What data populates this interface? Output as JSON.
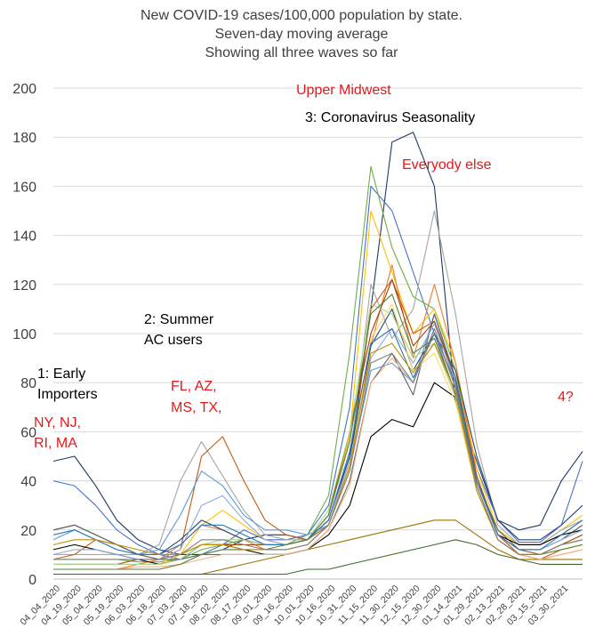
{
  "chart_data": {
    "type": "line",
    "title_lines": [
      "New COVID-19 cases/100,000 population by state.",
      "Seven-day moving average",
      "Showing all three waves so far"
    ],
    "xlabel": "",
    "ylabel": "",
    "ylim": [
      0,
      200
    ],
    "yticks": [
      "0",
      "20",
      "40",
      "60",
      "80",
      "100",
      "120",
      "140",
      "160",
      "180",
      "200"
    ],
    "xticks": [
      "04_04_2020",
      "04_19_2020",
      "05_04_2020",
      "05_19_2020",
      "06_03_2020",
      "06_18_2020",
      "07_03_2020",
      "07_18_2020",
      "08_02_2020",
      "08_17_2020",
      "09_01_2020",
      "09_16_2020",
      "10_01_2020",
      "10_16_2020",
      "10_31_2020",
      "11_15_2020",
      "11_30_2020",
      "12_15_2020",
      "12_30_2020",
      "01_14_2021",
      "01_29_2021",
      "02_13_2021",
      "02_28_2021",
      "03_15_2021",
      "03_30_2021"
    ],
    "grid": true,
    "legend": "none",
    "annotations": {
      "upper_midwest": "Upper Midwest",
      "seasonality": "3: Coronavirus Seasonality",
      "everyone_else": "Everyody else",
      "summer_1": "2: Summer",
      "summer_2": "AC users",
      "early_1": "1: Early",
      "early_2": "Importers",
      "fl_1": "FL, AZ,",
      "fl_2": "MS, TX,",
      "ny_1": "NY, NJ,",
      "ny_2": "RI, MA",
      "four": "4?"
    },
    "series": [
      {
        "color": "#1f3864",
        "values": [
          48,
          50,
          38,
          24,
          16,
          12,
          10,
          10,
          12,
          16,
          18,
          18,
          16,
          24,
          50,
          110,
          178,
          182,
          160,
          72,
          48,
          24,
          20,
          22,
          40,
          52
        ]
      },
      {
        "color": "#4472c4",
        "values": [
          40,
          38,
          30,
          20,
          14,
          10,
          8,
          10,
          14,
          20,
          16,
          16,
          18,
          30,
          70,
          160,
          150,
          125,
          100,
          75,
          45,
          24,
          15,
          15,
          22,
          48
        ]
      },
      {
        "color": "#70ad47",
        "values": [
          8,
          8,
          8,
          8,
          7,
          7,
          8,
          12,
          14,
          16,
          14,
          14,
          18,
          34,
          92,
          168,
          135,
          115,
          110,
          85,
          40,
          20,
          14,
          14,
          18,
          24
        ]
      },
      {
        "color": "#ffc000",
        "values": [
          6,
          6,
          6,
          6,
          6,
          6,
          10,
          22,
          28,
          22,
          16,
          14,
          16,
          26,
          58,
          150,
          125,
          100,
          110,
          88,
          45,
          20,
          14,
          14,
          20,
          26
        ]
      },
      {
        "color": "#a5a5a5",
        "values": [
          10,
          10,
          10,
          10,
          10,
          14,
          40,
          56,
          42,
          28,
          18,
          16,
          16,
          22,
          48,
          120,
          98,
          110,
          150,
          108,
          55,
          22,
          14,
          14,
          20,
          24
        ]
      },
      {
        "color": "#ed7d31",
        "values": [
          4,
          4,
          4,
          4,
          6,
          8,
          14,
          22,
          20,
          16,
          12,
          12,
          14,
          22,
          45,
          95,
          128,
          90,
          120,
          88,
          42,
          18,
          10,
          8,
          10,
          12
        ]
      },
      {
        "color": "#c55a11",
        "values": [
          8,
          10,
          16,
          14,
          10,
          8,
          12,
          50,
          58,
          40,
          24,
          18,
          16,
          22,
          45,
          110,
          122,
          100,
          105,
          80,
          40,
          18,
          10,
          8,
          12,
          14
        ]
      },
      {
        "color": "#5b9bd5",
        "values": [
          16,
          20,
          16,
          12,
          10,
          12,
          26,
          44,
          38,
          26,
          20,
          20,
          18,
          22,
          45,
          85,
          88,
          80,
          108,
          80,
          40,
          18,
          12,
          12,
          16,
          22
        ]
      },
      {
        "color": "#264478",
        "values": [
          20,
          22,
          18,
          14,
          10,
          10,
          16,
          24,
          20,
          16,
          14,
          14,
          16,
          24,
          50,
          95,
          110,
          85,
          100,
          85,
          50,
          24,
          16,
          16,
          22,
          30
        ]
      },
      {
        "color": "#9e480e",
        "values": [
          6,
          6,
          6,
          6,
          8,
          8,
          10,
          14,
          14,
          14,
          14,
          14,
          16,
          26,
          60,
          100,
          122,
          95,
          105,
          82,
          42,
          18,
          12,
          10,
          14,
          18
        ]
      },
      {
        "color": "#636363",
        "values": [
          20,
          22,
          18,
          14,
          10,
          8,
          8,
          10,
          10,
          10,
          10,
          10,
          12,
          20,
          40,
          80,
          92,
          75,
          108,
          82,
          40,
          20,
          12,
          12,
          16,
          22
        ]
      },
      {
        "color": "#997300",
        "values": [
          2,
          2,
          2,
          2,
          2,
          2,
          2,
          2,
          4,
          6,
          8,
          10,
          12,
          14,
          16,
          18,
          20,
          22,
          24,
          24,
          18,
          12,
          8,
          8,
          8,
          8
        ]
      },
      {
        "color": "#43682b",
        "values": [
          2,
          2,
          2,
          2,
          2,
          2,
          2,
          2,
          2,
          2,
          2,
          2,
          4,
          4,
          6,
          8,
          10,
          12,
          14,
          16,
          14,
          10,
          8,
          6,
          6,
          6
        ]
      },
      {
        "color": "#000000",
        "values": [
          12,
          14,
          12,
          10,
          8,
          6,
          8,
          14,
          14,
          12,
          10,
          10,
          12,
          18,
          30,
          58,
          65,
          62,
          80,
          74,
          40,
          18,
          14,
          14,
          18,
          20
        ]
      },
      {
        "color": "#f4b183",
        "values": [
          4,
          4,
          4,
          4,
          5,
          5,
          6,
          8,
          10,
          10,
          10,
          10,
          12,
          20,
          38,
          80,
          90,
          80,
          100,
          78,
          38,
          16,
          10,
          8,
          10,
          12
        ]
      },
      {
        "color": "#8faadc",
        "values": [
          10,
          12,
          12,
          10,
          8,
          8,
          12,
          30,
          34,
          24,
          16,
          14,
          16,
          24,
          48,
          90,
          102,
          88,
          104,
          80,
          40,
          18,
          12,
          12,
          16,
          20
        ]
      },
      {
        "color": "#a9d18e",
        "values": [
          6,
          6,
          6,
          6,
          6,
          6,
          8,
          14,
          16,
          16,
          14,
          14,
          16,
          28,
          60,
          112,
          108,
          90,
          96,
          74,
          36,
          16,
          10,
          10,
          14,
          16
        ]
      },
      {
        "color": "#ffd966",
        "values": [
          4,
          4,
          4,
          4,
          4,
          4,
          6,
          10,
          12,
          12,
          12,
          12,
          14,
          22,
          45,
          98,
          112,
          85,
          92,
          72,
          36,
          16,
          10,
          10,
          12,
          14
        ]
      },
      {
        "color": "#2e75b6",
        "values": [
          18,
          20,
          16,
          12,
          10,
          10,
          14,
          22,
          22,
          18,
          14,
          14,
          16,
          24,
          52,
          96,
          102,
          82,
          100,
          80,
          40,
          18,
          12,
          12,
          18,
          24
        ]
      },
      {
        "color": "#548235",
        "values": [
          4,
          4,
          4,
          4,
          4,
          4,
          6,
          10,
          12,
          12,
          12,
          14,
          16,
          26,
          56,
          108,
          116,
          92,
          98,
          76,
          38,
          16,
          10,
          10,
          12,
          14
        ]
      },
      {
        "color": "#bf9000",
        "values": [
          14,
          16,
          16,
          14,
          12,
          10,
          10,
          14,
          14,
          12,
          12,
          12,
          14,
          22,
          46,
          92,
          96,
          84,
          96,
          76,
          36,
          16,
          10,
          10,
          14,
          16
        ]
      },
      {
        "color": "#7f7f7f",
        "values": [
          8,
          8,
          8,
          8,
          8,
          8,
          10,
          16,
          16,
          14,
          12,
          12,
          14,
          22,
          44,
          88,
          92,
          80,
          102,
          78,
          38,
          16,
          10,
          10,
          14,
          16
        ]
      }
    ]
  }
}
